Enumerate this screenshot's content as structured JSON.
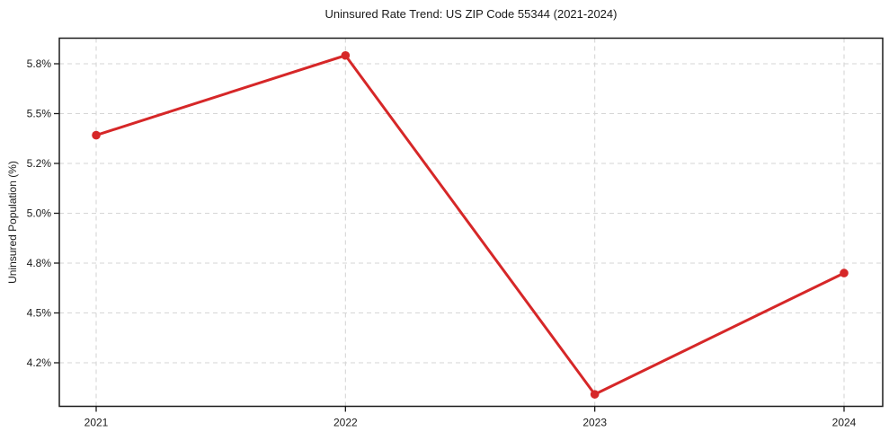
{
  "chart_data": {
    "type": "line",
    "title": "Uninsured Rate Trend: US ZIP Code 55344 (2021-2024)",
    "xlabel": "",
    "ylabel": "Uninsured Population (%)",
    "categories": [
      "2021",
      "2022",
      "2023",
      "2024"
    ],
    "values": [
      5.37,
      5.85,
      4.01,
      4.74
    ],
    "yticks": [
      5.8,
      5.5,
      5.2,
      5.0,
      4.8,
      4.5,
      4.2
    ],
    "ytick_labels": [
      "5.8%",
      "5.5%",
      "5.2%",
      "5.0%",
      "4.8%",
      "4.5%",
      "4.2%"
    ],
    "ylim_note": "ticks evenly spaced top-to-bottom; data extends slightly beyond 5.8 and 4.2",
    "grid": true,
    "grid_style": "dashed",
    "legend": false,
    "colors": {
      "line": "#d62728",
      "marker": "#d62728",
      "grid": "#d6d6d6",
      "axis": "#1a1a1a",
      "text": "#1a1a1a",
      "background": "#ffffff"
    }
  }
}
